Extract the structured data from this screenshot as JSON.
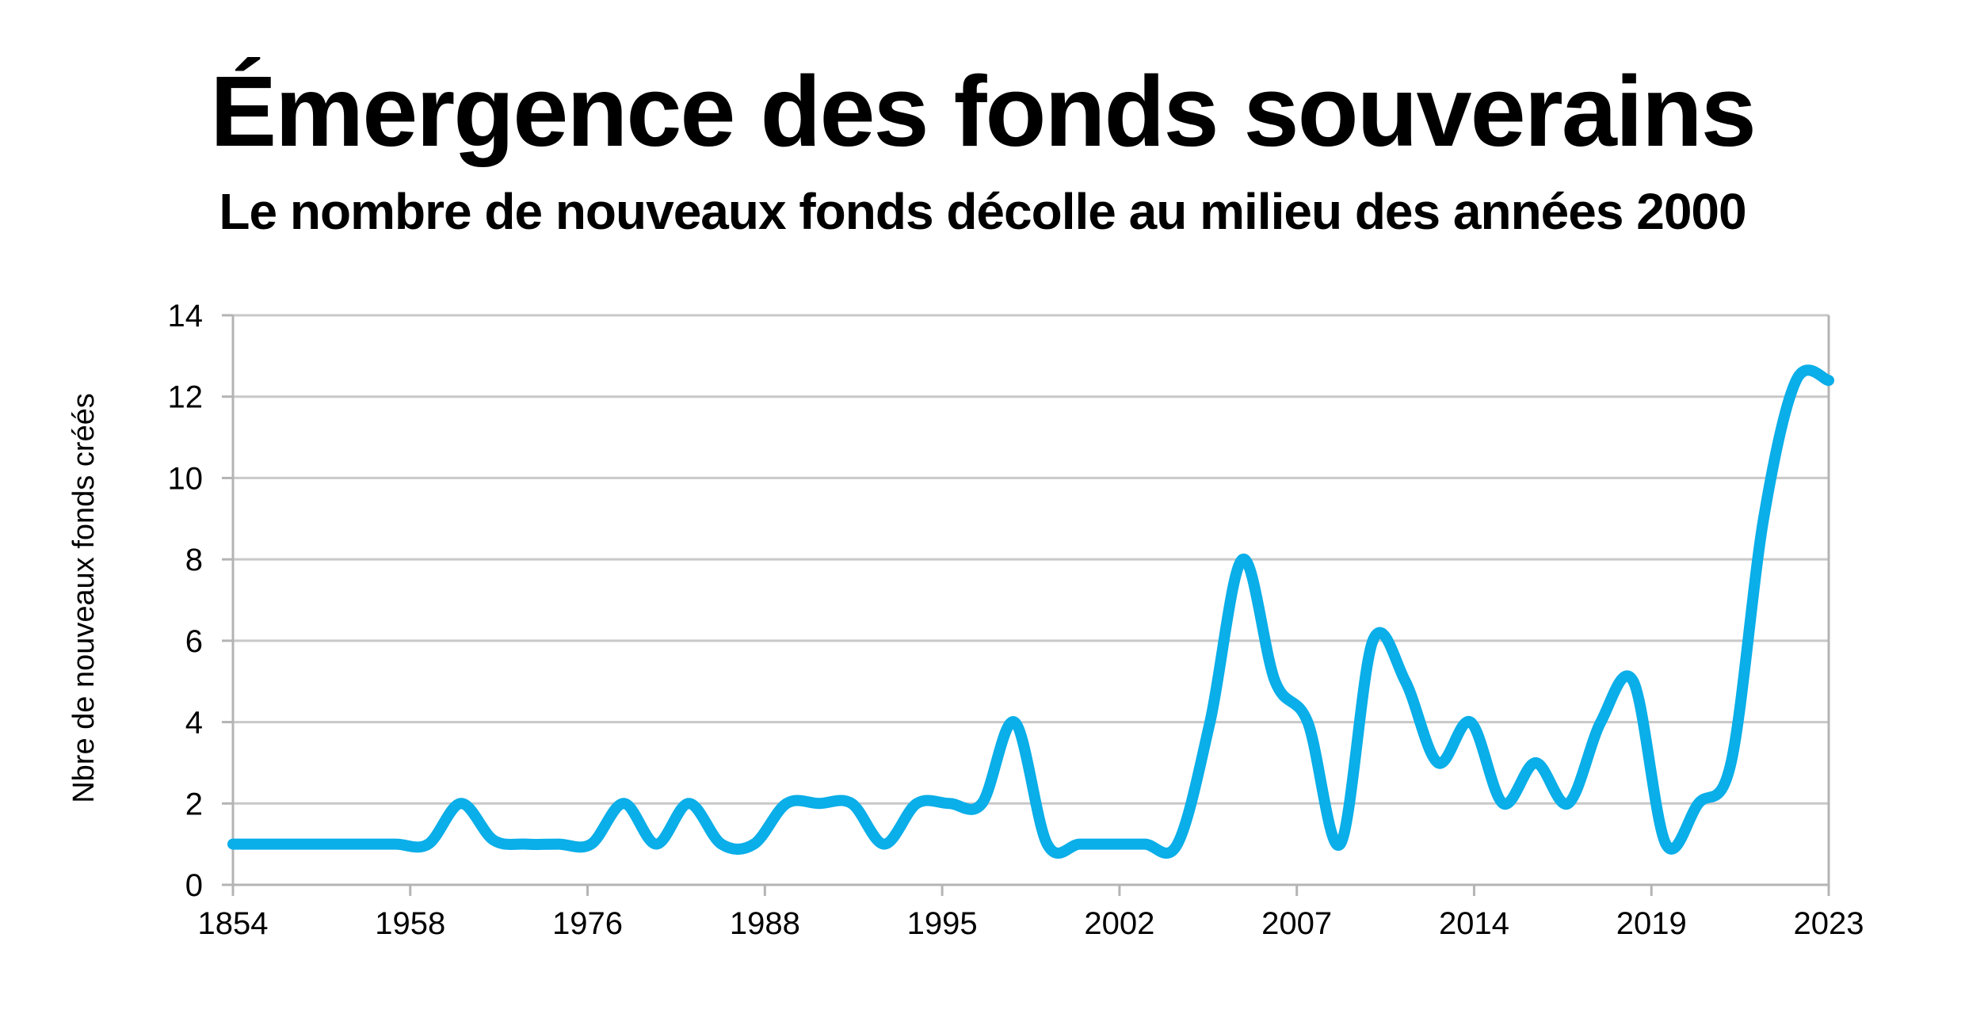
{
  "title": "Émergence des fonds souverains",
  "subtitle": "Le nombre de nouveaux fonds décolle au milieu des années 2000",
  "colors": {
    "line": "#0AAEE8",
    "grid": "#c8c8c8",
    "axis": "#b4b4b4"
  },
  "chart_data": {
    "type": "line",
    "title": "Émergence des fonds souverains",
    "subtitle": "Le nombre de nouveaux fonds décolle au milieu des années 2000",
    "xlabel": "",
    "ylabel": "Nbre de nouveaux fonds créés",
    "ylim": [
      0,
      14
    ],
    "yticks": [
      0,
      2,
      4,
      6,
      8,
      10,
      12,
      14
    ],
    "xtick_labels": [
      "1854",
      "1958",
      "1976",
      "1988",
      "1995",
      "2002",
      "2007",
      "2014",
      "2019",
      "2023"
    ],
    "grid": true,
    "x": [
      "1854",
      "",
      "",
      "",
      "",
      "1958",
      "",
      "",
      "",
      "",
      "",
      "1976",
      "",
      "",
      "",
      "",
      "1988",
      "",
      "",
      "",
      "",
      "",
      "1995",
      "",
      "",
      "",
      "",
      "",
      "2002",
      "",
      "",
      "",
      "",
      "",
      "2007",
      "",
      "",
      "",
      "",
      "",
      "2014",
      "",
      "",
      "",
      "",
      "",
      "2019",
      "",
      "",
      "2023"
    ],
    "values": [
      1,
      1,
      1,
      1,
      1,
      1,
      1,
      2,
      1.1,
      1,
      1,
      1,
      2,
      1,
      2,
      1,
      1,
      2,
      2,
      2,
      1,
      2,
      2,
      2,
      4,
      1,
      1,
      1,
      1,
      1,
      4,
      8,
      5,
      4,
      1,
      6,
      5,
      3,
      4,
      2,
      3,
      2,
      4,
      5,
      1,
      2,
      3,
      9,
      12.4,
      12.4
    ]
  }
}
